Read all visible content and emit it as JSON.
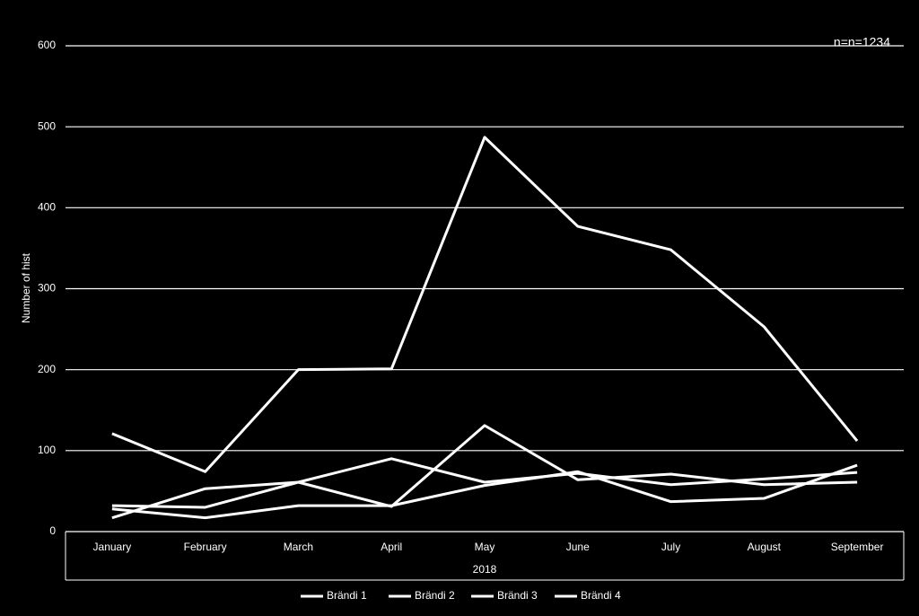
{
  "chart_data": {
    "type": "line",
    "annotation": "n=n=1234",
    "y_label": "Number of hist",
    "x_group_label": "2018",
    "categories": [
      "January",
      "February",
      "March",
      "April",
      "May",
      "June",
      "July",
      "August",
      "September"
    ],
    "series": [
      {
        "name": "Brändi 1",
        "color": "#ffffff",
        "values": [
          121,
          74,
          200,
          201,
          487,
          377,
          348,
          253,
          112
        ]
      },
      {
        "name": "Brändi 2",
        "color": "#ffffff",
        "values": [
          17,
          53,
          61,
          90,
          61,
          72,
          58,
          65,
          73
        ]
      },
      {
        "name": "Brändi 3",
        "color": "#ffffff",
        "values": [
          32,
          30,
          61,
          31,
          131,
          64,
          71,
          58,
          61
        ]
      },
      {
        "name": "Brändi 4",
        "color": "#ffffff",
        "values": [
          28,
          17,
          32,
          32,
          57,
          74,
          37,
          41,
          82
        ]
      }
    ],
    "ylim": [
      0,
      600
    ],
    "yticks": [
      0,
      100,
      200,
      300,
      400,
      500,
      600
    ],
    "grid": true,
    "legend": "bottom"
  }
}
